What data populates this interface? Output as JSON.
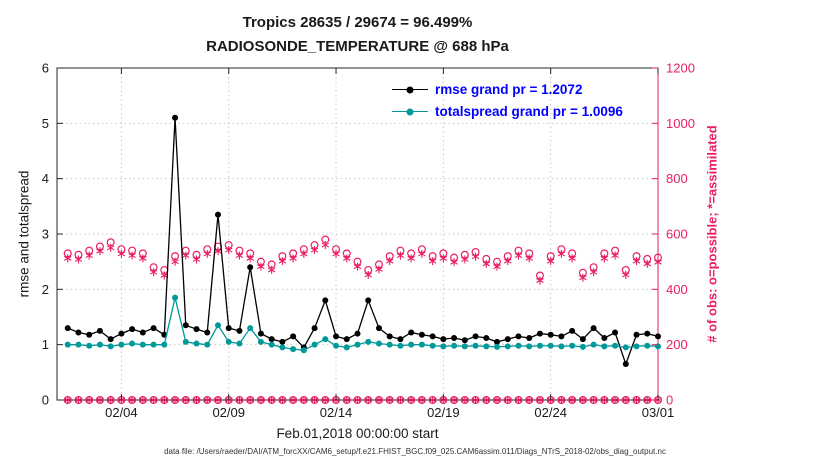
{
  "title": {
    "line1": "Tropics 28635 / 29674 = 96.499%",
    "line2": "RADIOSONDE_TEMPERATURE @ 688 hPa"
  },
  "axes": {
    "left_label": "rmse and totalspread",
    "right_label": "# of obs: o=possible; *=assimilated",
    "x_label": "Feb.01,2018 00:00:00 start"
  },
  "footer": "data file: /Users/raeder/DAI/ATM_forcXX/CAM6_setup/f.e21.FHIST_BGC.f09_025.CAM6assim.011/Diags_NTrS_2018-02/obs_diag_output.nc",
  "legend": {
    "items": [
      {
        "label": "rmse grand pr = 1.2072",
        "color": "#000000"
      },
      {
        "label": "totalspread grand pr = 1.0096",
        "color": "#009999"
      }
    ]
  },
  "colors": {
    "obs": "#e91e63",
    "grid": "#c9c9c9",
    "axis": "#262626",
    "tick_label": "#1a1a1a",
    "legend_text": "#0000ff"
  },
  "chart_data": {
    "type": "line",
    "title": "Tropics 28635 / 29674 = 96.499% | RADIOSONDE_TEMPERATURE @ 688 hPa",
    "xlabel": "Feb.01,2018 00:00:00 start",
    "ylabel_left": "rmse and totalspread",
    "ylabel_right": "# of obs: o=possible; *=assimilated",
    "left_ylim": [
      0,
      6
    ],
    "right_ylim": [
      0,
      1200
    ],
    "x_range": [
      0,
      28
    ],
    "left_ticks": [
      0,
      1,
      2,
      3,
      4,
      5,
      6
    ],
    "right_ticks": [
      0,
      200,
      400,
      600,
      800,
      1000,
      1200
    ],
    "x_ticks": [
      {
        "day": 3,
        "label": "02/04"
      },
      {
        "day": 8,
        "label": "02/09"
      },
      {
        "day": 13,
        "label": "02/14"
      },
      {
        "day": 18,
        "label": "02/19"
      },
      {
        "day": 23,
        "label": "02/24"
      },
      {
        "day": 28,
        "label": "03/01"
      }
    ],
    "grid": true,
    "legend_position": "top-center-inside",
    "x_days": [
      0.5,
      1,
      1.5,
      2,
      2.5,
      3,
      3.5,
      4,
      4.5,
      5,
      5.5,
      6,
      6.5,
      7,
      7.5,
      8,
      8.5,
      9,
      9.5,
      10,
      10.5,
      11,
      11.5,
      12,
      12.5,
      13,
      13.5,
      14,
      14.5,
      15,
      15.5,
      16,
      16.5,
      17,
      17.5,
      18,
      18.5,
      19,
      19.5,
      20,
      20.5,
      21,
      21.5,
      22,
      22.5,
      23,
      23.5,
      24,
      24.5,
      25,
      25.5,
      26,
      26.5,
      27,
      27.5,
      28
    ],
    "zero_marker_row": {
      "axis": "right",
      "value": 0,
      "markers": [
        "open-circle",
        "asterisk"
      ]
    },
    "series": [
      {
        "name": "possible obs count",
        "axis": "right",
        "marker": "open-circle",
        "line": false,
        "color": "#e91e63",
        "values": [
          530,
          525,
          540,
          555,
          570,
          545,
          540,
          530,
          480,
          470,
          520,
          540,
          525,
          545,
          555,
          560,
          540,
          530,
          500,
          490,
          520,
          530,
          545,
          560,
          580,
          545,
          530,
          500,
          470,
          490,
          520,
          540,
          530,
          545,
          520,
          530,
          515,
          525,
          535,
          510,
          500,
          520,
          540,
          530,
          450,
          520,
          545,
          530,
          460,
          480,
          530,
          540,
          470,
          520,
          510,
          515
        ]
      },
      {
        "name": "assimilated obs count",
        "axis": "right",
        "marker": "asterisk",
        "line": false,
        "color": "#e91e63",
        "values": [
          512,
          508,
          522,
          538,
          550,
          528,
          522,
          512,
          462,
          450,
          500,
          522,
          508,
          528,
          538,
          542,
          522,
          512,
          482,
          470,
          502,
          512,
          528,
          542,
          560,
          528,
          512,
          482,
          452,
          472,
          502,
          522,
          512,
          528,
          502,
          512,
          498,
          508,
          518,
          492,
          482,
          502,
          522,
          512,
          432,
          502,
          528,
          512,
          442,
          462,
          512,
          522,
          452,
          502,
          492,
          498
        ]
      },
      {
        "name": "rmse",
        "axis": "left",
        "marker": "filled-circle",
        "line": true,
        "color": "#000000",
        "values": [
          1.3,
          1.22,
          1.18,
          1.25,
          1.1,
          1.2,
          1.28,
          1.22,
          1.3,
          1.18,
          5.1,
          1.35,
          1.28,
          1.22,
          3.35,
          1.3,
          1.25,
          2.4,
          1.2,
          1.1,
          1.05,
          1.15,
          0.95,
          1.3,
          1.8,
          1.15,
          1.1,
          1.2,
          1.8,
          1.3,
          1.15,
          1.1,
          1.22,
          1.18,
          1.15,
          1.1,
          1.12,
          1.08,
          1.15,
          1.12,
          1.05,
          1.1,
          1.15,
          1.12,
          1.2,
          1.18,
          1.15,
          1.25,
          1.1,
          1.3,
          1.12,
          1.22,
          0.65,
          1.18,
          1.2,
          1.15
        ]
      },
      {
        "name": "totalspread",
        "axis": "left",
        "marker": "filled-circle",
        "line": true,
        "color": "#009999",
        "values": [
          1.0,
          1.0,
          0.98,
          1.0,
          0.97,
          1.0,
          1.02,
          1.0,
          1.0,
          1.0,
          1.85,
          1.05,
          1.02,
          1.0,
          1.35,
          1.05,
          1.02,
          1.3,
          1.05,
          1.0,
          0.95,
          0.92,
          0.9,
          1.0,
          1.1,
          0.98,
          0.95,
          1.0,
          1.05,
          1.02,
          1.0,
          0.98,
          1.0,
          1.0,
          0.98,
          0.97,
          0.98,
          0.97,
          0.98,
          0.97,
          0.96,
          0.97,
          0.98,
          0.97,
          0.98,
          0.98,
          0.97,
          0.98,
          0.96,
          1.0,
          0.97,
          0.98,
          0.95,
          0.97,
          0.98,
          0.97
        ]
      }
    ]
  }
}
